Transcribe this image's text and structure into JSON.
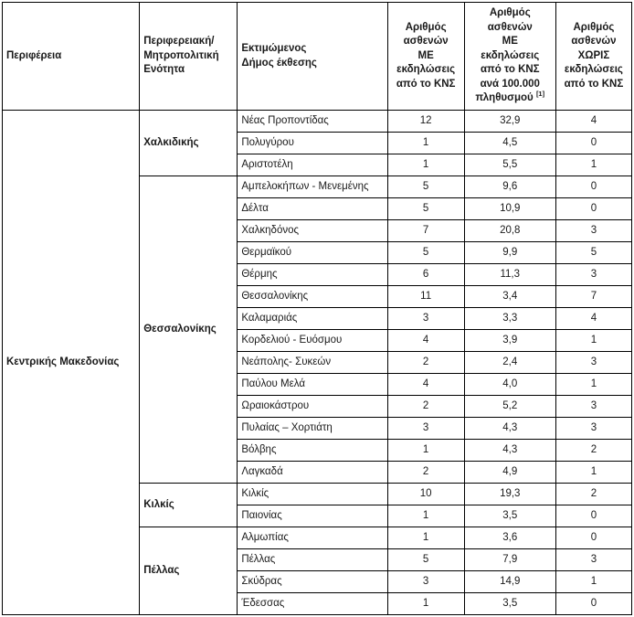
{
  "colors": {
    "border": "#000000",
    "text": "#1a1a1a",
    "background": "#ffffff"
  },
  "table": {
    "column_headers": {
      "region": "Περιφέρεια",
      "unit": "Περιφερειακή/\nΜητροπολιτική\nΕνότητα",
      "municipality": "Εκτιμώμενος\nΔήμος έκθεσης",
      "with_cns": "Αριθμός\nασθενών\nΜΕ\nεκδηλώσεις\nαπό το ΚΝΣ",
      "per_100k": "Αριθμός\nασθενών\nΜΕ\nεκδηλώσεις\nαπό το ΚΝΣ\nανά 100.000\nπληθυσμού ",
      "per_100k_superscript": "[1]",
      "without_cns": "Αριθμός\nασθενών\nΧΩΡΙΣ\nεκδηλώσεις\nαπό το ΚΝΣ"
    },
    "region": "Κεντρικής Μακεδονίας",
    "groups": [
      {
        "unit": "Χαλκιδικής",
        "municipalities": [
          {
            "name": "Νέας Προποντίδας",
            "with_cns": "12",
            "per_100k": "32,9",
            "without_cns": "4"
          },
          {
            "name": "Πολυγύρου",
            "with_cns": "1",
            "per_100k": "4,5",
            "without_cns": "0"
          },
          {
            "name": "Αριστοτέλη",
            "with_cns": "1",
            "per_100k": "5,5",
            "without_cns": "1"
          }
        ]
      },
      {
        "unit": "Θεσσαλονίκης",
        "municipalities": [
          {
            "name": "Αμπελοκήπων - Μενεμένης",
            "with_cns": "5",
            "per_100k": "9,6",
            "without_cns": "0"
          },
          {
            "name": "Δέλτα",
            "with_cns": "5",
            "per_100k": "10,9",
            "without_cns": "0"
          },
          {
            "name": "Χαλκηδόνος",
            "with_cns": "7",
            "per_100k": "20,8",
            "without_cns": "3"
          },
          {
            "name": "Θερμαϊκού",
            "with_cns": "5",
            "per_100k": "9,9",
            "without_cns": "5"
          },
          {
            "name": "Θέρμης",
            "with_cns": "6",
            "per_100k": "11,3",
            "without_cns": "3"
          },
          {
            "name": "Θεσσαλονίκης",
            "with_cns": "11",
            "per_100k": "3,4",
            "without_cns": "7"
          },
          {
            "name": "Καλαμαριάς",
            "with_cns": "3",
            "per_100k": "3,3",
            "without_cns": "4"
          },
          {
            "name": "Κορδελιού - Ευόσμου",
            "with_cns": "4",
            "per_100k": "3,9",
            "without_cns": "1"
          },
          {
            "name": "Νεάπολης- Συκεών",
            "with_cns": "2",
            "per_100k": "2,4",
            "without_cns": "3"
          },
          {
            "name": "Παύλου Μελά",
            "with_cns": "4",
            "per_100k": "4,0",
            "without_cns": "1"
          },
          {
            "name": "Ωραιοκάστρου",
            "with_cns": "2",
            "per_100k": "5,2",
            "without_cns": "3"
          },
          {
            "name": "Πυλαίας – Χορτιάτη",
            "with_cns": "3",
            "per_100k": "4,3",
            "without_cns": "3"
          },
          {
            "name": "Βόλβης",
            "with_cns": "1",
            "per_100k": "4,3",
            "without_cns": "2"
          },
          {
            "name": "Λαγκαδά",
            "with_cns": "2",
            "per_100k": "4,9",
            "without_cns": "1"
          }
        ]
      },
      {
        "unit": "Κιλκίς",
        "municipalities": [
          {
            "name": "Κιλκίς",
            "with_cns": "10",
            "per_100k": "19,3",
            "without_cns": "2"
          },
          {
            "name": "Παιονίας",
            "with_cns": "1",
            "per_100k": "3,5",
            "without_cns": "0"
          }
        ]
      },
      {
        "unit": "Πέλλας",
        "municipalities": [
          {
            "name": "Αλμωπίας",
            "with_cns": "1",
            "per_100k": "3,6",
            "without_cns": "0"
          },
          {
            "name": "Πέλλας",
            "with_cns": "5",
            "per_100k": "7,9",
            "without_cns": "3"
          },
          {
            "name": "Σκύδρας",
            "with_cns": "3",
            "per_100k": "14,9",
            "without_cns": "1"
          },
          {
            "name": "Έδεσσας",
            "with_cns": "1",
            "per_100k": "3,5",
            "without_cns": "0"
          }
        ]
      }
    ]
  }
}
